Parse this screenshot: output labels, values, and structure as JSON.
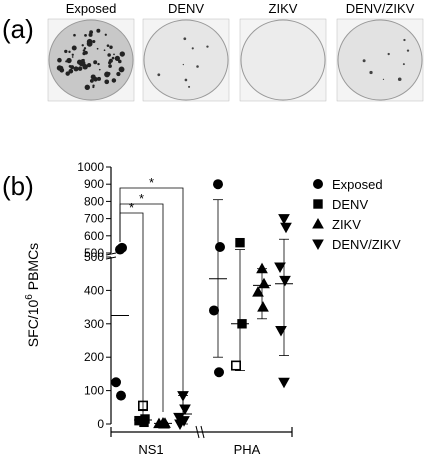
{
  "panels": {
    "a_label": "(a)",
    "b_label": "(b)"
  },
  "wells": [
    {
      "title": "Exposed",
      "tone": "#c8c8c8",
      "spots": "dense"
    },
    {
      "title": "DENV",
      "tone": "#e6e6e6",
      "spots": "few"
    },
    {
      "title": "ZIKV",
      "tone": "#ececec",
      "spots": "none"
    },
    {
      "title": "DENV/ZIKV",
      "tone": "#e2e2e2",
      "spots": "few"
    }
  ],
  "chart_data": {
    "type": "scatter",
    "ylabel": "SFC/10",
    "ylabel_sup": "6",
    "ylabel_suffix": " PBMCs",
    "yaxis_lower": {
      "range": [
        0,
        500
      ],
      "ticks": [
        "0",
        "100",
        "200",
        "300",
        "400",
        "500"
      ]
    },
    "yaxis_upper": {
      "range": [
        500,
        1000
      ],
      "ticks": [
        "500",
        "600",
        "700",
        "800",
        "900",
        "1000"
      ]
    },
    "categories": [
      "NS1",
      "PHA"
    ],
    "series": [
      {
        "name": "Exposed",
        "marker": "circle",
        "NS1": [
          520,
          530,
          125,
          85
        ],
        "NS1_mean": 325,
        "NS1_err": [
          0,
          0
        ],
        "PHA": [
          900,
          535,
          340,
          155
        ],
        "PHA_mean": 435,
        "PHA_err": [
          200,
          810
        ]
      },
      {
        "name": "DENV",
        "marker": "square",
        "NS1": [
          55,
          15,
          10,
          5
        ],
        "NS1_open": [
          55
        ],
        "NS1_mean": 12,
        "NS1_err": [
          0,
          40
        ],
        "PHA": [
          560,
          300,
          175
        ],
        "PHA_open": [
          175
        ],
        "PHA_mean": 300,
        "PHA_err": [
          160,
          520
        ]
      },
      {
        "name": "ZIKV",
        "marker": "triangle-up",
        "NS1": [
          3,
          2,
          1,
          0
        ],
        "NS1_mean": 2,
        "NS1_err": [
          0,
          5
        ],
        "PHA": [
          465,
          420,
          395,
          350
        ],
        "PHA_mean": 415,
        "PHA_err": [
          315,
          465
        ]
      },
      {
        "name": "DENV/ZIKV",
        "marker": "triangle-down",
        "NS1": [
          85,
          45,
          20,
          10,
          0
        ],
        "NS1_mean": 30,
        "NS1_err": [
          0,
          85
        ],
        "PHA": [
          700,
          650,
          470,
          430,
          280,
          125
        ],
        "PHA_mean": 420,
        "PHA_err": [
          205,
          580
        ]
      }
    ],
    "significance": [
      {
        "label": "*",
        "from": "Exposed",
        "to": "DENV"
      },
      {
        "label": "*",
        "from": "Exposed",
        "to": "ZIKV"
      },
      {
        "label": "*",
        "from": "Exposed",
        "to": "DENV/ZIKV"
      }
    ],
    "legend_position": "right"
  }
}
